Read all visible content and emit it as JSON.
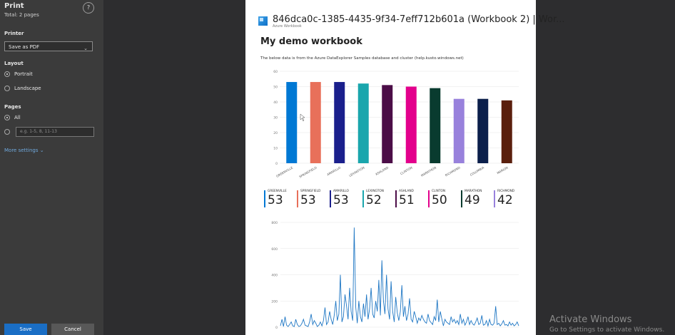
{
  "print_panel": {
    "title": "Print",
    "subtitle": "Total: 2 pages",
    "help_symbol": "?",
    "printer_label": "Printer",
    "printer_value": "Save as PDF",
    "layout_label": "Layout",
    "layout_options": [
      "Portrait",
      "Landscape"
    ],
    "layout_selected": "Portrait",
    "pages_label": "Pages",
    "pages_all_label": "All",
    "pages_placeholder": "e.g. 1-5, 8, 11-13",
    "more_settings": "More settings",
    "save_button": "Save",
    "cancel_button": "Cancel"
  },
  "document": {
    "header_title": "846dca0c-1385-4435-9f34-7eff712b601a (Workbook 2) | Wor...",
    "header_subtitle": "Azure Workbook",
    "workbook_title": "My demo workbook",
    "description": "The below data is from the Azure DataExplorer Samples database and cluster (help.kusto.windows.net)"
  },
  "tiles": [
    {
      "label": "GREENVILLE",
      "value": "53",
      "color": "#0078d4"
    },
    {
      "label": "SPRINGFIELD",
      "value": "53",
      "color": "#e8705a"
    },
    {
      "label": "AMARILLO",
      "value": "53",
      "color": "#1a1f8c"
    },
    {
      "label": "LEXINGTON",
      "value": "52",
      "color": "#1aa6ad"
    },
    {
      "label": "ASHLAND",
      "value": "51",
      "color": "#4b0d47"
    },
    {
      "label": "CLINTON",
      "value": "50",
      "color": "#e3008c"
    },
    {
      "label": "MARATHON",
      "value": "49",
      "color": "#093b2f"
    },
    {
      "label": "RICHMOND",
      "value": "42",
      "color": "#9881dc"
    }
  ],
  "chart_data": [
    {
      "type": "bar",
      "categories": [
        "GREENVILLE",
        "SPRINGFIELD",
        "AMARILLO",
        "LEXINGTON",
        "ASHLAND",
        "CLINTON",
        "MARATHON",
        "RICHMOND",
        "COLUMBIA",
        "MARION"
      ],
      "values": [
        53,
        53,
        53,
        52,
        51,
        50,
        49,
        42,
        42,
        41
      ],
      "colors": [
        "#0078d4",
        "#e8705a",
        "#1a1f8c",
        "#1aa6ad",
        "#4b0d47",
        "#e3008c",
        "#093b2f",
        "#9881dc",
        "#0b1f4b",
        "#5a1f0d"
      ],
      "yticks": [
        0,
        10,
        20,
        30,
        40,
        50,
        60
      ],
      "ylim": [
        0,
        60
      ],
      "grid": true,
      "title": "",
      "xlabel": "",
      "ylabel": ""
    },
    {
      "type": "line",
      "color": "#1f77c4",
      "yticks": [
        0,
        200,
        400,
        600,
        800
      ],
      "ylim": [
        0,
        800
      ],
      "grid": true,
      "title": "",
      "xlabel": "",
      "ylabel": "",
      "series": [
        {
          "values": [
            10,
            60,
            5,
            80,
            15,
            5,
            20,
            40,
            10,
            5,
            60,
            20,
            5,
            10,
            30,
            60,
            15,
            10,
            5,
            40,
            100,
            20,
            50,
            30,
            5,
            15,
            40,
            10,
            50,
            150,
            20,
            40,
            120,
            60,
            20,
            90,
            200,
            50,
            100,
            400,
            40,
            80,
            250,
            160,
            60,
            300,
            120,
            50,
            760,
            150,
            30,
            200,
            80,
            40,
            180,
            80,
            250,
            60,
            140,
            300,
            100,
            70,
            200,
            120,
            360,
            90,
            510,
            200,
            100,
            400,
            140,
            60,
            350,
            120,
            40,
            230,
            110,
            50,
            120,
            320,
            80,
            160,
            50,
            100,
            220,
            60,
            40,
            120,
            80,
            30,
            70,
            50,
            90,
            60,
            40,
            30,
            100,
            50,
            35,
            20,
            80,
            50,
            210,
            40,
            120,
            60,
            10,
            60,
            40,
            30,
            20,
            80,
            40,
            60,
            30,
            50,
            20,
            100,
            30,
            60,
            15,
            40,
            80,
            20,
            50,
            25,
            15,
            40,
            70,
            20,
            30,
            90,
            15,
            20,
            50,
            10,
            60,
            20,
            15,
            30,
            160,
            20,
            30,
            10,
            25,
            50,
            15,
            20,
            10,
            40,
            15,
            30,
            10,
            20,
            40,
            10
          ]
        }
      ]
    }
  ],
  "watermark": {
    "line1": "Activate Windows",
    "line2": "Go to Settings to activate Windows."
  }
}
